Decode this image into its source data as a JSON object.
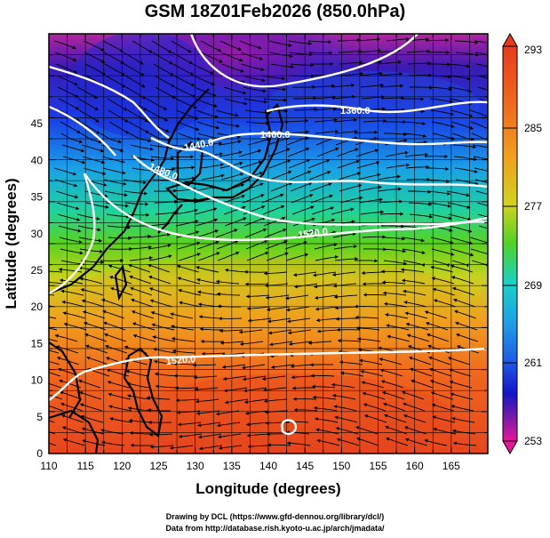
{
  "figure": {
    "title": "GSM 18Z01Feb2026 (850.0hPa)",
    "xlabel": "Longitude (degrees)",
    "ylabel": "Latitude  (degrees)",
    "x_ticks": [
      "110",
      "115",
      "120",
      "125",
      "130",
      "135",
      "140",
      "145",
      "150",
      "155",
      "160",
      "165"
    ],
    "y_ticks": [
      "0",
      "5",
      "10",
      "15",
      "20",
      "25",
      "30",
      "35",
      "40",
      "45"
    ],
    "x_range": [
      110,
      170
    ],
    "y_range": [
      0,
      50
    ],
    "colorbar": {
      "range": [
        253,
        293
      ],
      "labels": [
        "293",
        "285",
        "277",
        "269",
        "261",
        "253"
      ],
      "colors": [
        "#e6169a",
        "#7a1aa8",
        "#1414c8",
        "#1f5ae6",
        "#1ea0e6",
        "#19d2c8",
        "#1ed264",
        "#78d21e",
        "#d2d21e",
        "#f0a01e",
        "#f06a1e",
        "#e63c1e"
      ]
    },
    "contour_labels": [
      "1360.0",
      "1400.0",
      "1440.0",
      "1480.0",
      "1520.0",
      "1520.0"
    ],
    "credits": [
      "Drawing by DCL (https://www.gfd-dennou.org/library/dcl/)",
      "Data from http://database.rish.kyoto-u.ac.jp/arch/jmadata/"
    ]
  }
}
